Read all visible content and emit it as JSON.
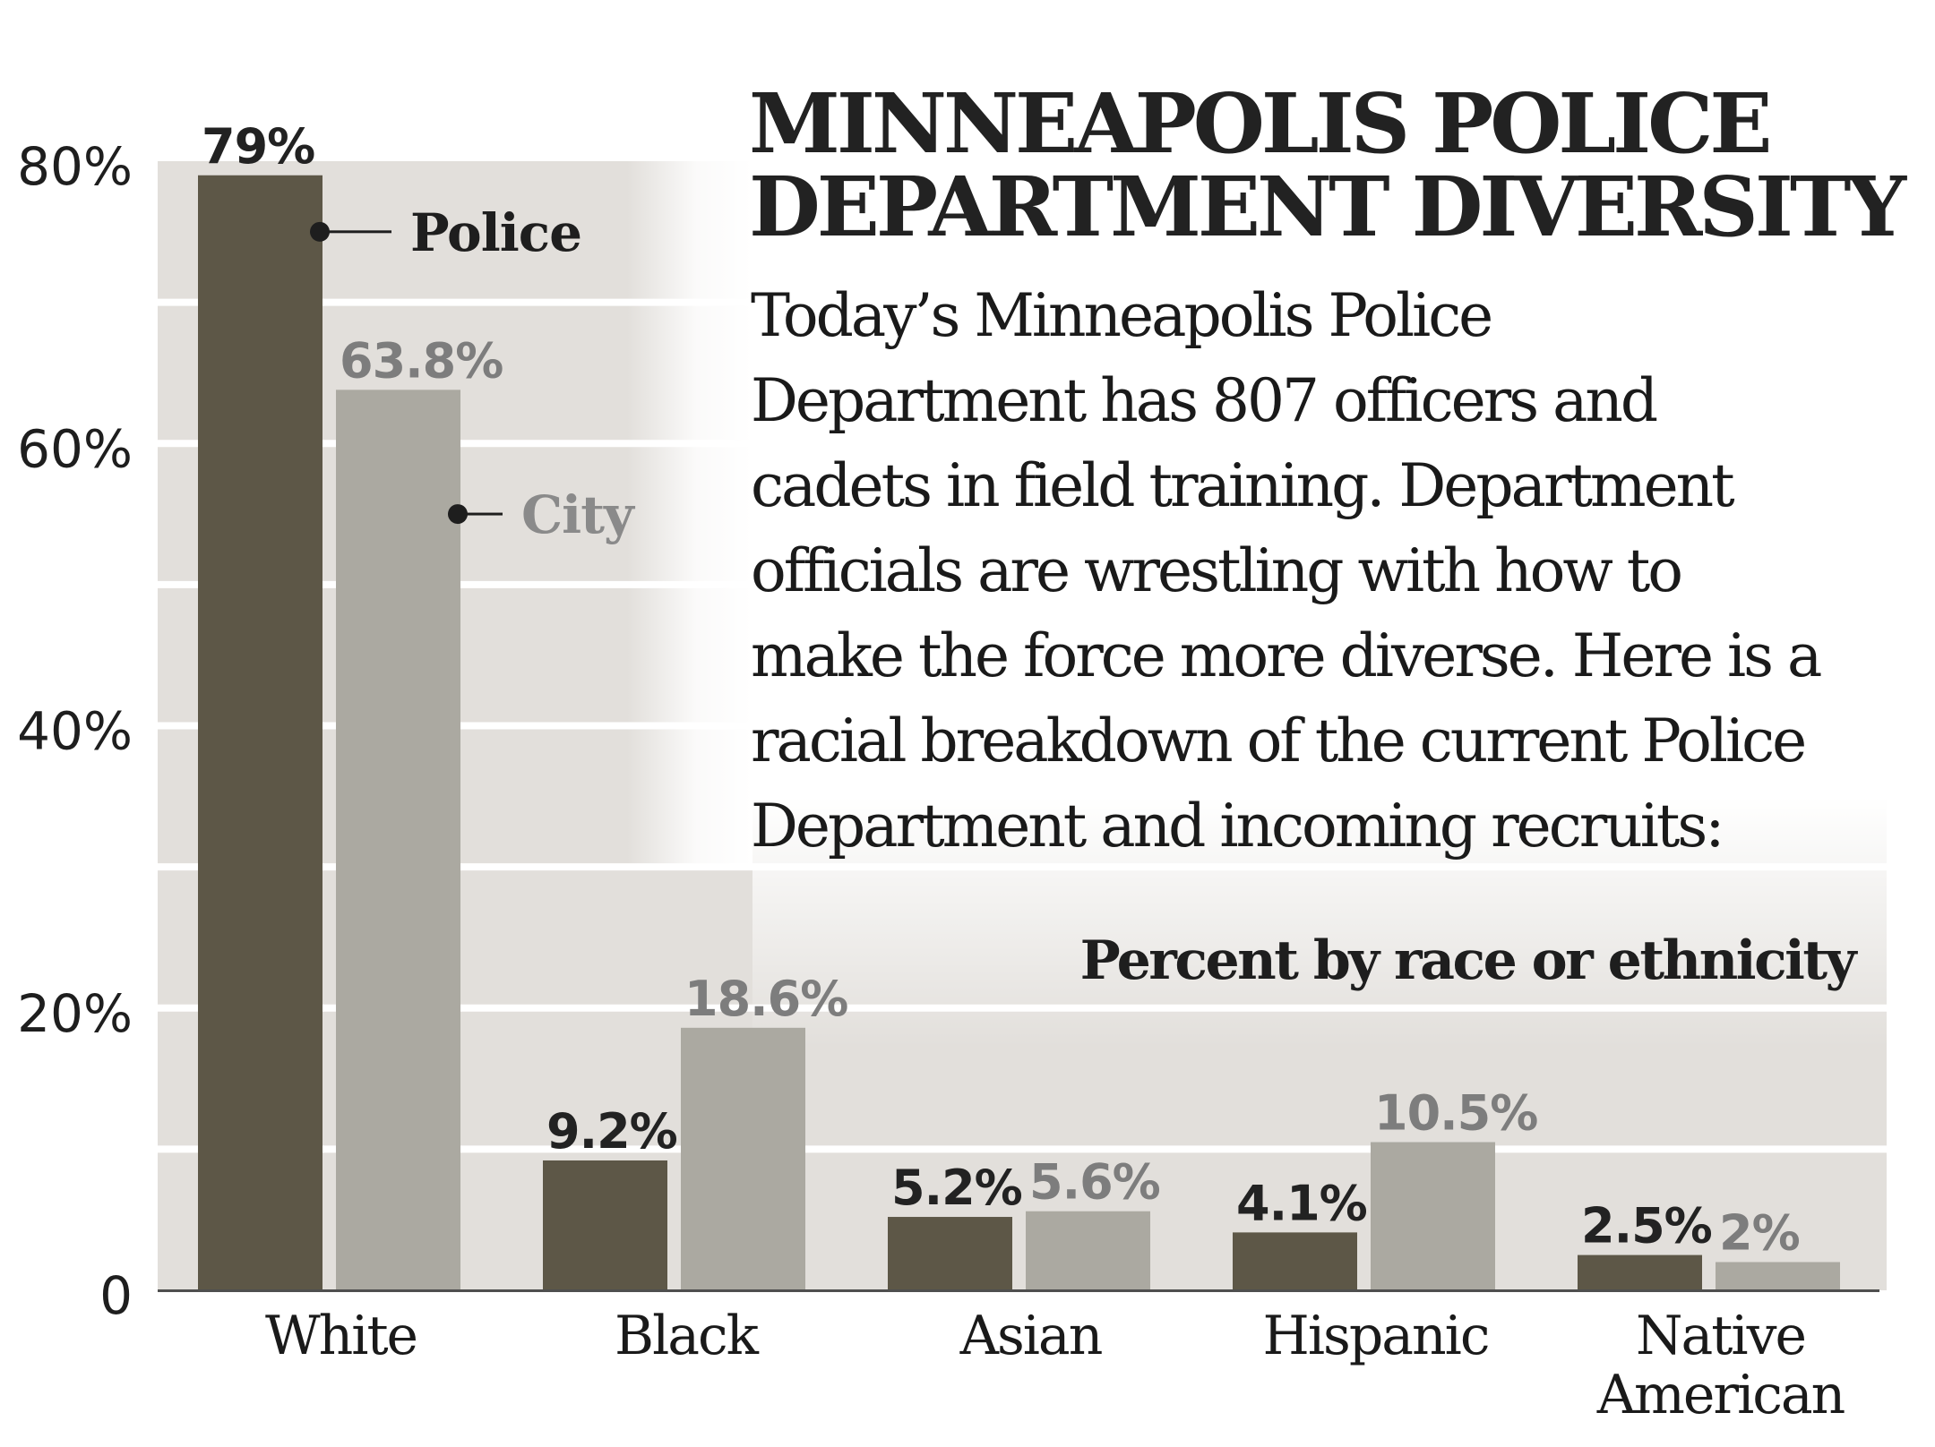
{
  "chart_data": {
    "type": "bar",
    "title": "MINNEAPOLIS POLICE DEPARTMENT DIVERSITY",
    "title_lines": [
      "MINNEAPOLIS POLICE",
      "DEPARTMENT DIVERSITY"
    ],
    "description_lines": [
      "Today’s Minneapolis Police",
      "Department has 807 officers and",
      "cadets in field training. Department",
      "officials are wrestling with how to",
      "make the force more diverse. Here is a",
      "racial breakdown of the current Police",
      "Department and incoming recruits:"
    ],
    "subtitle": "Percent by race or ethnicity",
    "xlabel": "",
    "ylabel": "",
    "ylim": [
      0,
      80
    ],
    "yticks": [
      0,
      20,
      40,
      60,
      80
    ],
    "ytick_labels": [
      "0",
      "20%",
      "40%",
      "60%",
      "80%"
    ],
    "grid": "horizontal bands every 10%",
    "categories": [
      [
        "White"
      ],
      [
        "Black"
      ],
      [
        "Asian"
      ],
      [
        "Hispanic"
      ],
      [
        "Native",
        "American"
      ]
    ],
    "series": [
      {
        "name": "Police",
        "values": [
          79,
          9.2,
          5.2,
          4.1,
          2.5
        ],
        "labels": [
          "79%",
          "9.2%",
          "5.2%",
          "4.1%",
          "2.5%"
        ],
        "color": "#5d5747",
        "label_color": "#222222"
      },
      {
        "name": "City",
        "values": [
          63.8,
          18.6,
          5.6,
          10.5,
          2
        ],
        "labels": [
          "63.8%",
          "18.6%",
          "5.6%",
          "10.5%",
          "2%"
        ],
        "color": "#aba9a1",
        "label_color": "#7d7d7d"
      }
    ],
    "legend": {
      "placement": "inline, next to White bars",
      "items": [
        {
          "label": "Police",
          "series": 0,
          "anchor_value": 75
        },
        {
          "label": "City",
          "series": 1,
          "anchor_value": 55
        }
      ]
    },
    "colors": {
      "plot_background": "#e2dfdb",
      "grid_lines": "#ffffff",
      "axis": "#4f4f4f"
    }
  }
}
